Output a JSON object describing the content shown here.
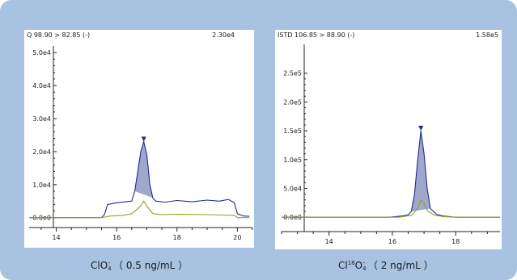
{
  "chart_data": [
    {
      "type": "line",
      "title": "Q 98.90 > 82.85 (-)",
      "max_intensity_label": "2.30e4",
      "y_ticks": [
        "0.0e0",
        "1.0e4",
        "2.0e4",
        "3.0e4",
        "4.0e4",
        "5.0e4"
      ],
      "x_ticks": [
        "14",
        "16",
        "18",
        "20"
      ],
      "xlim": [
        13.1,
        20.5
      ],
      "ylim": [
        -3000,
        52000
      ],
      "grid": false,
      "caption_parts": {
        "a": "ClO",
        "sup": "-",
        "sub": "4",
        "b": "（ 0.5 ng/mL ）"
      },
      "series": [
        {
          "color": "#1f2d8c",
          "x": [
            13.1,
            15.5,
            15.6,
            15.7,
            16.0,
            16.3,
            16.5,
            16.6,
            16.7,
            16.8,
            16.9,
            17.0,
            17.1,
            17.2,
            17.3,
            17.6,
            18.0,
            18.5,
            19.0,
            19.4,
            19.7,
            19.9,
            20.0,
            20.2,
            20.4
          ],
          "y": [
            0,
            0,
            1000,
            4000,
            4500,
            4800,
            5000,
            8000,
            14000,
            20000,
            23000,
            19000,
            10000,
            6000,
            5000,
            4700,
            5200,
            4800,
            5300,
            5000,
            5500,
            4500,
            1200,
            500,
            400
          ]
        },
        {
          "color": "#8fa51f",
          "x": [
            13.1,
            15.5,
            15.8,
            16.2,
            16.5,
            16.8,
            16.9,
            17.0,
            17.2,
            17.5,
            18.0,
            19.0,
            19.6,
            19.9,
            20.0,
            20.4
          ],
          "y": [
            0,
            0,
            500,
            700,
            1200,
            3500,
            5000,
            3500,
            1200,
            900,
            1000,
            900,
            800,
            700,
            0,
            0
          ]
        }
      ],
      "peak_label": "▼"
    },
    {
      "type": "line",
      "title": "ISTD 106.85 > 88.90 (-)",
      "max_intensity_label": "1.58e5",
      "y_ticks": [
        "0.0e0",
        "5.0e4",
        "1.0e5",
        "1.5e5",
        "2.0e5",
        "2.5e5"
      ],
      "x_ticks": [
        "14",
        "16",
        "18"
      ],
      "xlim": [
        12.5,
        19.4
      ],
      "ylim": [
        -25000,
        300000
      ],
      "grid": false,
      "caption_parts": {
        "a": "Cl",
        "sup": "18",
        "mid": "O",
        "sup2": "-",
        "sub": "4",
        "b": "（ 2 ng/mL ）"
      },
      "series": [
        {
          "color": "#1f2d8c",
          "x": [
            12.5,
            15.9,
            16.1,
            16.3,
            16.5,
            16.6,
            16.7,
            16.8,
            16.9,
            17.0,
            17.1,
            17.2,
            17.4,
            17.6,
            17.8,
            18.0,
            19.4
          ],
          "y": [
            0,
            0,
            1000,
            2000,
            4000,
            10000,
            40000,
            100000,
            150000,
            110000,
            50000,
            15000,
            5000,
            2000,
            1000,
            0,
            0
          ]
        },
        {
          "color": "#8fa51f",
          "x": [
            12.5,
            16.2,
            16.6,
            16.8,
            16.9,
            17.0,
            17.1,
            17.3,
            17.6,
            18.0,
            19.4
          ],
          "y": [
            0,
            0,
            3000,
            15000,
            30000,
            25000,
            12000,
            4000,
            1000,
            0,
            0
          ]
        }
      ],
      "peak_label": "▼"
    }
  ]
}
